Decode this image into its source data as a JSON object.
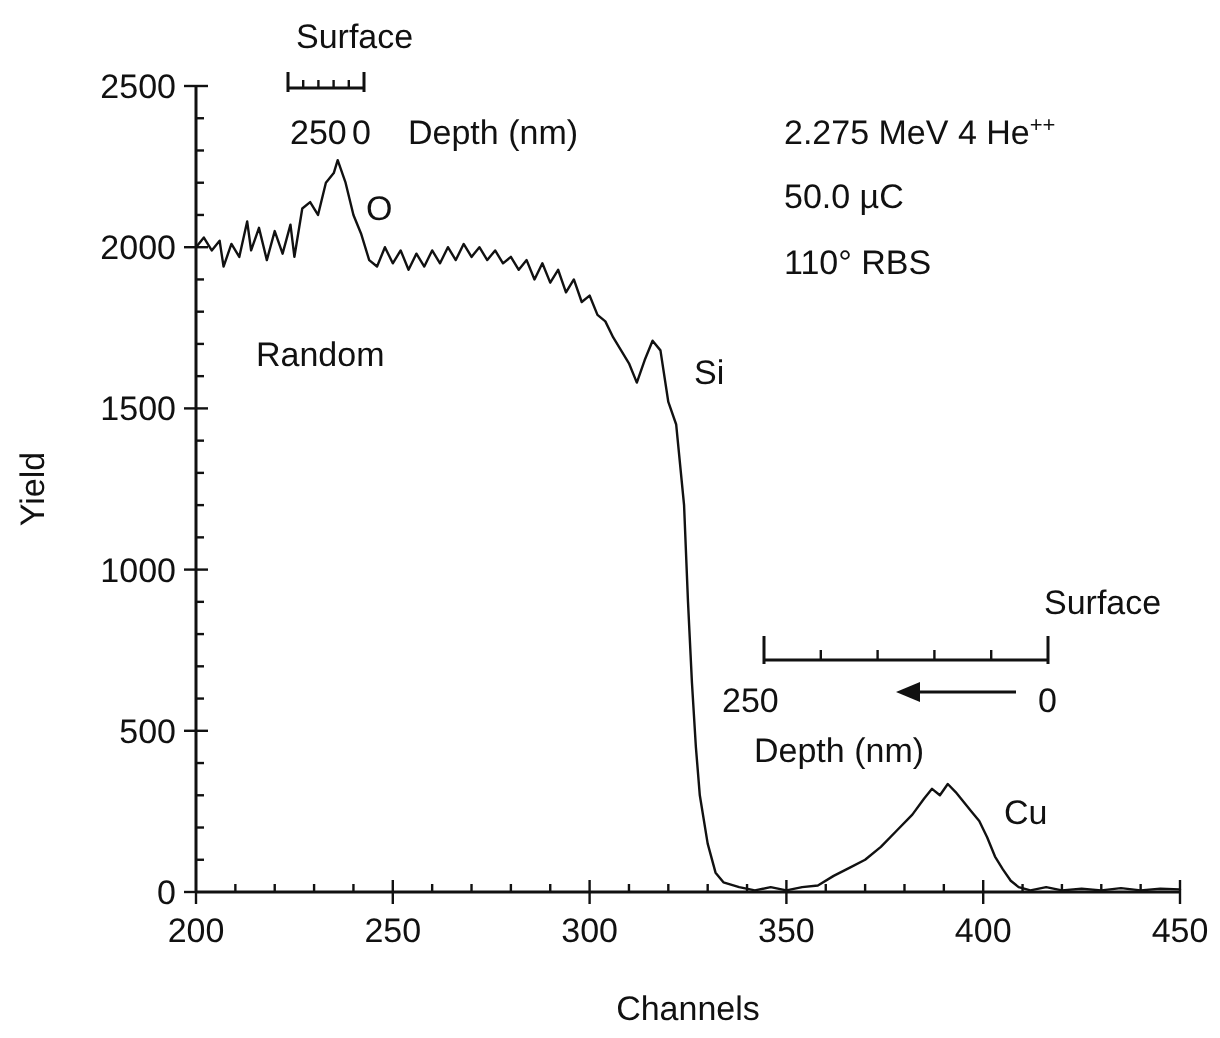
{
  "chart_data": {
    "type": "line",
    "xlabel": "Channels",
    "ylabel": "Yield",
    "xlim": [
      200,
      450
    ],
    "ylim": [
      0,
      2500
    ],
    "xticks": [
      200,
      {
        "value": 210,
        "label": null
      },
      {
        "value": 220,
        "label": null
      },
      {
        "value": 230,
        "label": null
      },
      {
        "value": 240,
        "label": null
      },
      250,
      {
        "value": 260,
        "label": null
      },
      {
        "value": 270,
        "label": null
      },
      {
        "value": 280,
        "label": null
      },
      {
        "value": 290,
        "label": null
      },
      300,
      {
        "value": 310,
        "label": null
      },
      {
        "value": 320,
        "label": null
      },
      {
        "value": 330,
        "label": null
      },
      {
        "value": 340,
        "label": null
      },
      350,
      {
        "value": 360,
        "label": null
      },
      {
        "value": 370,
        "label": null
      },
      {
        "value": 380,
        "label": null
      },
      {
        "value": 390,
        "label": null
      },
      400,
      {
        "value": 410,
        "label": null
      },
      {
        "value": 420,
        "label": null
      },
      {
        "value": 430,
        "label": null
      },
      {
        "value": 440,
        "label": null
      },
      450
    ],
    "yticks": [
      0,
      {
        "value": 100,
        "label": null
      },
      {
        "value": 200,
        "label": null
      },
      {
        "value": 300,
        "label": null
      },
      {
        "value": 400,
        "label": null
      },
      500,
      {
        "value": 600,
        "label": null
      },
      {
        "value": 700,
        "label": null
      },
      {
        "value": 800,
        "label": null
      },
      {
        "value": 900,
        "label": null
      },
      1000,
      {
        "value": 1100,
        "label": null
      },
      {
        "value": 1200,
        "label": null
      },
      {
        "value": 1300,
        "label": null
      },
      {
        "value": 1400,
        "label": null
      },
      1500,
      {
        "value": 1600,
        "label": null
      },
      {
        "value": 1700,
        "label": null
      },
      {
        "value": 1800,
        "label": null
      },
      {
        "value": 1900,
        "label": null
      },
      2000,
      {
        "value": 2100,
        "label": null
      },
      {
        "value": 2200,
        "label": null
      },
      {
        "value": 2300,
        "label": null
      },
      {
        "value": 2400,
        "label": null
      },
      2500
    ],
    "grid": false,
    "marker": "none",
    "line_style": "solid",
    "series": [
      {
        "color": "#111111",
        "x": [
          200,
          202,
          204,
          206,
          207,
          209,
          211,
          213,
          214,
          216,
          218,
          220,
          222,
          224,
          225,
          227,
          229,
          231,
          233,
          235,
          236,
          238,
          240,
          242,
          244,
          246,
          248,
          250,
          252,
          254,
          256,
          258,
          260,
          262,
          264,
          266,
          268,
          270,
          272,
          274,
          276,
          278,
          280,
          282,
          284,
          286,
          288,
          290,
          292,
          294,
          296,
          298,
          300,
          302,
          304,
          306,
          308,
          310,
          312,
          314,
          316,
          318,
          320,
          322,
          324,
          325,
          326,
          327,
          328,
          330,
          332,
          334,
          338,
          342,
          346,
          350,
          354,
          358,
          362,
          366,
          370,
          374,
          378,
          382,
          385,
          387,
          389,
          391,
          393,
          395,
          397,
          399,
          401,
          403,
          405,
          407,
          409,
          412,
          416,
          420,
          425,
          430,
          435,
          440,
          445,
          450
        ],
        "values": [
          2000,
          2030,
          1990,
          2020,
          1940,
          2010,
          1970,
          2080,
          1990,
          2060,
          1960,
          2050,
          1980,
          2070,
          1970,
          2120,
          2140,
          2100,
          2200,
          2230,
          2270,
          2200,
          2100,
          2040,
          1960,
          1940,
          2000,
          1950,
          1990,
          1930,
          1980,
          1940,
          1990,
          1950,
          2000,
          1960,
          2010,
          1970,
          2000,
          1960,
          1990,
          1950,
          1970,
          1930,
          1960,
          1900,
          1950,
          1890,
          1930,
          1860,
          1900,
          1830,
          1850,
          1790,
          1770,
          1720,
          1680,
          1640,
          1580,
          1650,
          1710,
          1680,
          1520,
          1450,
          1200,
          900,
          650,
          450,
          300,
          150,
          60,
          30,
          15,
          5,
          15,
          5,
          15,
          20,
          50,
          75,
          100,
          140,
          190,
          240,
          290,
          320,
          300,
          335,
          310,
          280,
          250,
          220,
          170,
          110,
          70,
          35,
          15,
          5,
          15,
          5,
          10,
          5,
          12,
          5,
          10,
          8
        ]
      }
    ],
    "annotations": [
      "O",
      "Random",
      "Si",
      "Cu",
      "Surface",
      "250",
      "0",
      "Depth (nm)",
      "2.275 MeV 4 He$^{++}$",
      "50.0 µC",
      "110° RBS",
      "Surface",
      "250",
      "0",
      "Depth (nm)"
    ]
  }
}
